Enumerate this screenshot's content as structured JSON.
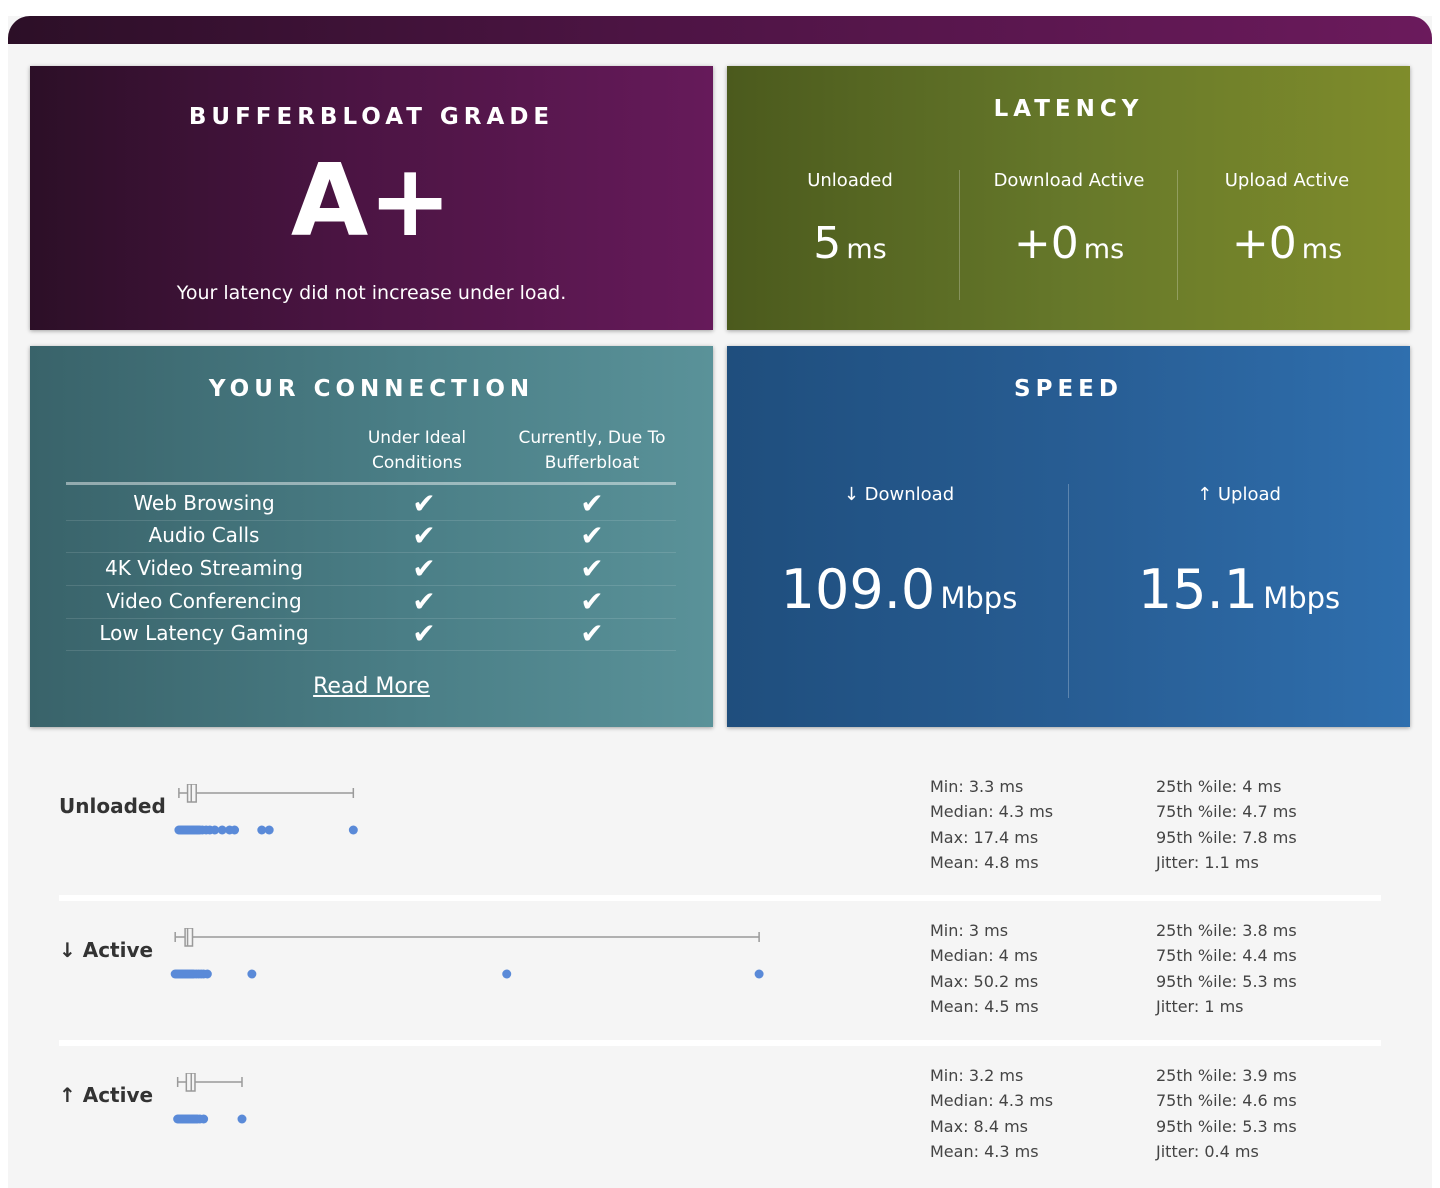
{
  "colors": {
    "grade_gradient": [
      "#2c0f27",
      "#661a5a"
    ],
    "latency_gradient": [
      "#4b5a1d",
      "#7f8c2b"
    ],
    "connection_gradient": [
      "#39636a",
      "#5a9299"
    ],
    "speed_gradient": [
      "#1f4e7d",
      "#2f6fae"
    ],
    "dot": "#5a8ad8",
    "box": "#9a9a9a"
  },
  "grade": {
    "title": "BUFFERBLOAT GRADE",
    "value": "A+",
    "description": "Your latency did not increase under load."
  },
  "latency": {
    "title": "LATENCY",
    "columns": [
      {
        "label": "Unloaded",
        "value": "5",
        "unit": "ms"
      },
      {
        "label": "Download Active",
        "value": "+0",
        "unit": "ms"
      },
      {
        "label": "Upload Active",
        "value": "+0",
        "unit": "ms"
      }
    ]
  },
  "connection": {
    "title": "YOUR CONNECTION",
    "col_ideal": "Under Ideal Conditions",
    "col_current": "Currently, Due To Bufferbloat",
    "check_glyph": "✔",
    "rows": [
      {
        "label": "Web Browsing",
        "ideal": true,
        "current": true
      },
      {
        "label": "Audio Calls",
        "ideal": true,
        "current": true
      },
      {
        "label": "4K Video Streaming",
        "ideal": true,
        "current": true
      },
      {
        "label": "Video Conferencing",
        "ideal": true,
        "current": true
      },
      {
        "label": "Low Latency Gaming",
        "ideal": true,
        "current": true
      }
    ],
    "read_more": "Read More"
  },
  "speed": {
    "title": "SPEED",
    "download": {
      "label": "↓ Download",
      "value": "109.0",
      "unit": "Mbps"
    },
    "upload": {
      "label": "↑ Upload",
      "value": "15.1",
      "unit": "Mbps"
    }
  },
  "stats": [
    {
      "name": "Unloaded",
      "min": 3.3,
      "q1": 4,
      "median": 4.3,
      "q3": 4.7,
      "max": 17.4,
      "samples": [
        3.3,
        3.4,
        3.5,
        3.6,
        3.7,
        3.8,
        3.9,
        4.0,
        4.1,
        4.2,
        4.3,
        4.4,
        4.5,
        4.6,
        4.7,
        4.8,
        4.9,
        5.0,
        5.2,
        5.5,
        5.8,
        6.2,
        6.8,
        7.4,
        7.8,
        10.0,
        10.6,
        17.4
      ],
      "col1": [
        "Min: 3.3 ms",
        "Median: 4.3 ms",
        "Max: 17.4 ms",
        "Mean: 4.8 ms"
      ],
      "col2": [
        "25th %ile: 4 ms",
        "75th %ile: 4.7 ms",
        "95th %ile: 7.8 ms",
        "Jitter: 1.1 ms"
      ]
    },
    {
      "name": "↓ Active",
      "min": 3,
      "q1": 3.8,
      "median": 4,
      "q3": 4.4,
      "max": 50.2,
      "samples": [
        3.0,
        3.1,
        3.2,
        3.3,
        3.4,
        3.5,
        3.6,
        3.7,
        3.8,
        3.9,
        4.0,
        4.1,
        4.2,
        4.3,
        4.4,
        4.5,
        4.7,
        4.9,
        5.1,
        5.3,
        5.6,
        9.2,
        29.8,
        50.2
      ],
      "col1": [
        "Min: 3 ms",
        "Median: 4 ms",
        "Max: 50.2 ms",
        "Mean: 4.5 ms"
      ],
      "col2": [
        "25th %ile: 3.8 ms",
        "75th %ile: 4.4 ms",
        "95th %ile: 5.3 ms",
        "Jitter: 1 ms"
      ]
    },
    {
      "name": "↑ Active",
      "min": 3.2,
      "q1": 3.9,
      "median": 4.3,
      "q3": 4.6,
      "max": 8.4,
      "samples": [
        3.2,
        3.3,
        3.4,
        3.5,
        3.6,
        3.7,
        3.8,
        3.9,
        4.0,
        4.1,
        4.2,
        4.3,
        4.4,
        4.5,
        4.6,
        4.7,
        4.8,
        5.0,
        5.3,
        8.4
      ],
      "col1": [
        "Min: 3.2 ms",
        "Median: 4.3 ms",
        "Max: 8.4 ms",
        "Mean: 4.3 ms"
      ],
      "col2": [
        "25th %ile: 3.9 ms",
        "75th %ile: 4.6 ms",
        "95th %ile: 5.3 ms",
        "Jitter: 0.4 ms"
      ]
    }
  ]
}
